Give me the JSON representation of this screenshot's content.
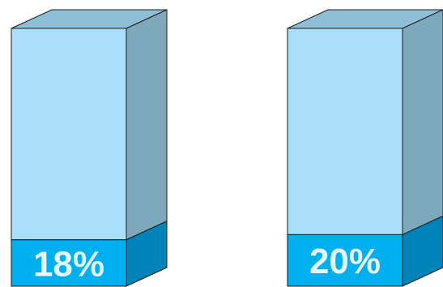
{
  "chart_data": {
    "type": "bar",
    "style": "3d-cylinder-fill",
    "categories": [
      "",
      ""
    ],
    "values": [
      18,
      20
    ],
    "labels": [
      "18%",
      "20%"
    ],
    "ylim": [
      0,
      100
    ],
    "legend": "none",
    "grid": false
  },
  "colors": {
    "empty_front": "#abdff9",
    "empty_top": "#8fbfd6",
    "empty_side": "#7ea9bc",
    "fill_front": "#00b0ee",
    "fill_side": "#0083b8",
    "outline": "#1a1a1a",
    "label": "#e6f6fd"
  }
}
